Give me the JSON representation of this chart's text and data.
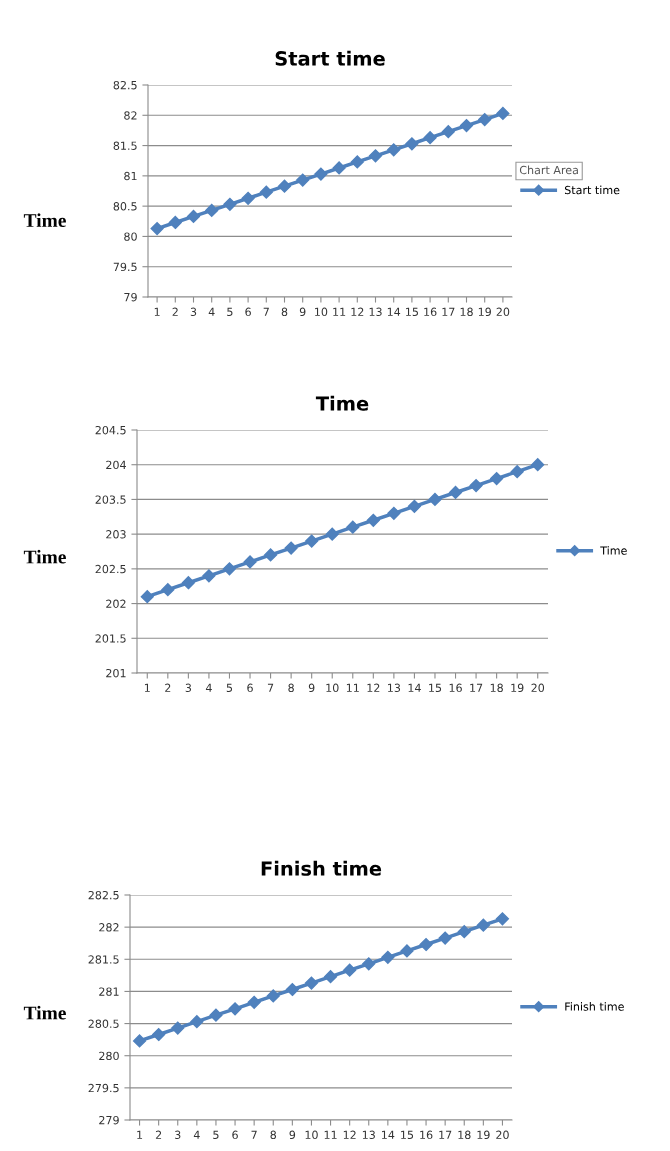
{
  "chart_data": [
    {
      "type": "line",
      "title": "Start time",
      "ylabel": "Time",
      "categories": [
        "1",
        "2",
        "3",
        "4",
        "5",
        "6",
        "7",
        "8",
        "9",
        "10",
        "11",
        "12",
        "13",
        "14",
        "15",
        "16",
        "17",
        "18",
        "19",
        "20"
      ],
      "series": [
        {
          "name": "Start time",
          "color": "#4f81bd",
          "values": [
            80.13,
            80.23,
            80.33,
            80.43,
            80.53,
            80.63,
            80.73,
            80.83,
            80.93,
            81.03,
            81.13,
            81.23,
            81.33,
            81.43,
            81.53,
            81.63,
            81.73,
            81.83,
            81.93,
            82.03
          ]
        }
      ],
      "ylim": [
        79,
        82.5
      ],
      "yticks": [
        79,
        79.5,
        80,
        80.5,
        81,
        81.5,
        82,
        82.5
      ],
      "grid": "y",
      "legend": "right",
      "marker": "diamond",
      "line_style": "solid",
      "annotations": [
        "Chart Area"
      ]
    },
    {
      "type": "line",
      "title": "Time",
      "ylabel": "Time",
      "categories": [
        "1",
        "2",
        "3",
        "4",
        "5",
        "6",
        "7",
        "8",
        "9",
        "10",
        "11",
        "12",
        "13",
        "14",
        "15",
        "16",
        "17",
        "18",
        "19",
        "20"
      ],
      "series": [
        {
          "name": "Time",
          "color": "#4f81bd",
          "values": [
            202.1,
            202.2,
            202.3,
            202.4,
            202.5,
            202.6,
            202.7,
            202.8,
            202.9,
            203.0,
            203.1,
            203.2,
            203.3,
            203.4,
            203.5,
            203.6,
            203.7,
            203.8,
            203.9,
            204.0
          ]
        }
      ],
      "ylim": [
        201,
        204.5
      ],
      "yticks": [
        201,
        201.5,
        202,
        202.5,
        203,
        203.5,
        204,
        204.5
      ],
      "grid": "y",
      "legend": "right",
      "marker": "diamond",
      "line_style": "solid"
    },
    {
      "type": "line",
      "title": "Finish time",
      "ylabel": "Time",
      "categories": [
        "1",
        "2",
        "3",
        "4",
        "5",
        "6",
        "7",
        "8",
        "9",
        "10",
        "11",
        "12",
        "13",
        "14",
        "15",
        "16",
        "17",
        "18",
        "19",
        "20"
      ],
      "series": [
        {
          "name": "Finish time",
          "color": "#4f81bd",
          "values": [
            280.23,
            280.33,
            280.43,
            280.53,
            280.63,
            280.73,
            280.83,
            280.93,
            281.03,
            281.13,
            281.23,
            281.33,
            281.43,
            281.53,
            281.63,
            281.73,
            281.83,
            281.93,
            282.03,
            282.13
          ]
        }
      ],
      "ylim": [
        279,
        282.5
      ],
      "yticks": [
        279,
        279.5,
        280,
        280.5,
        281,
        281.5,
        282,
        282.5
      ],
      "grid": "y",
      "legend": "right",
      "marker": "diamond",
      "line_style": "solid"
    }
  ]
}
